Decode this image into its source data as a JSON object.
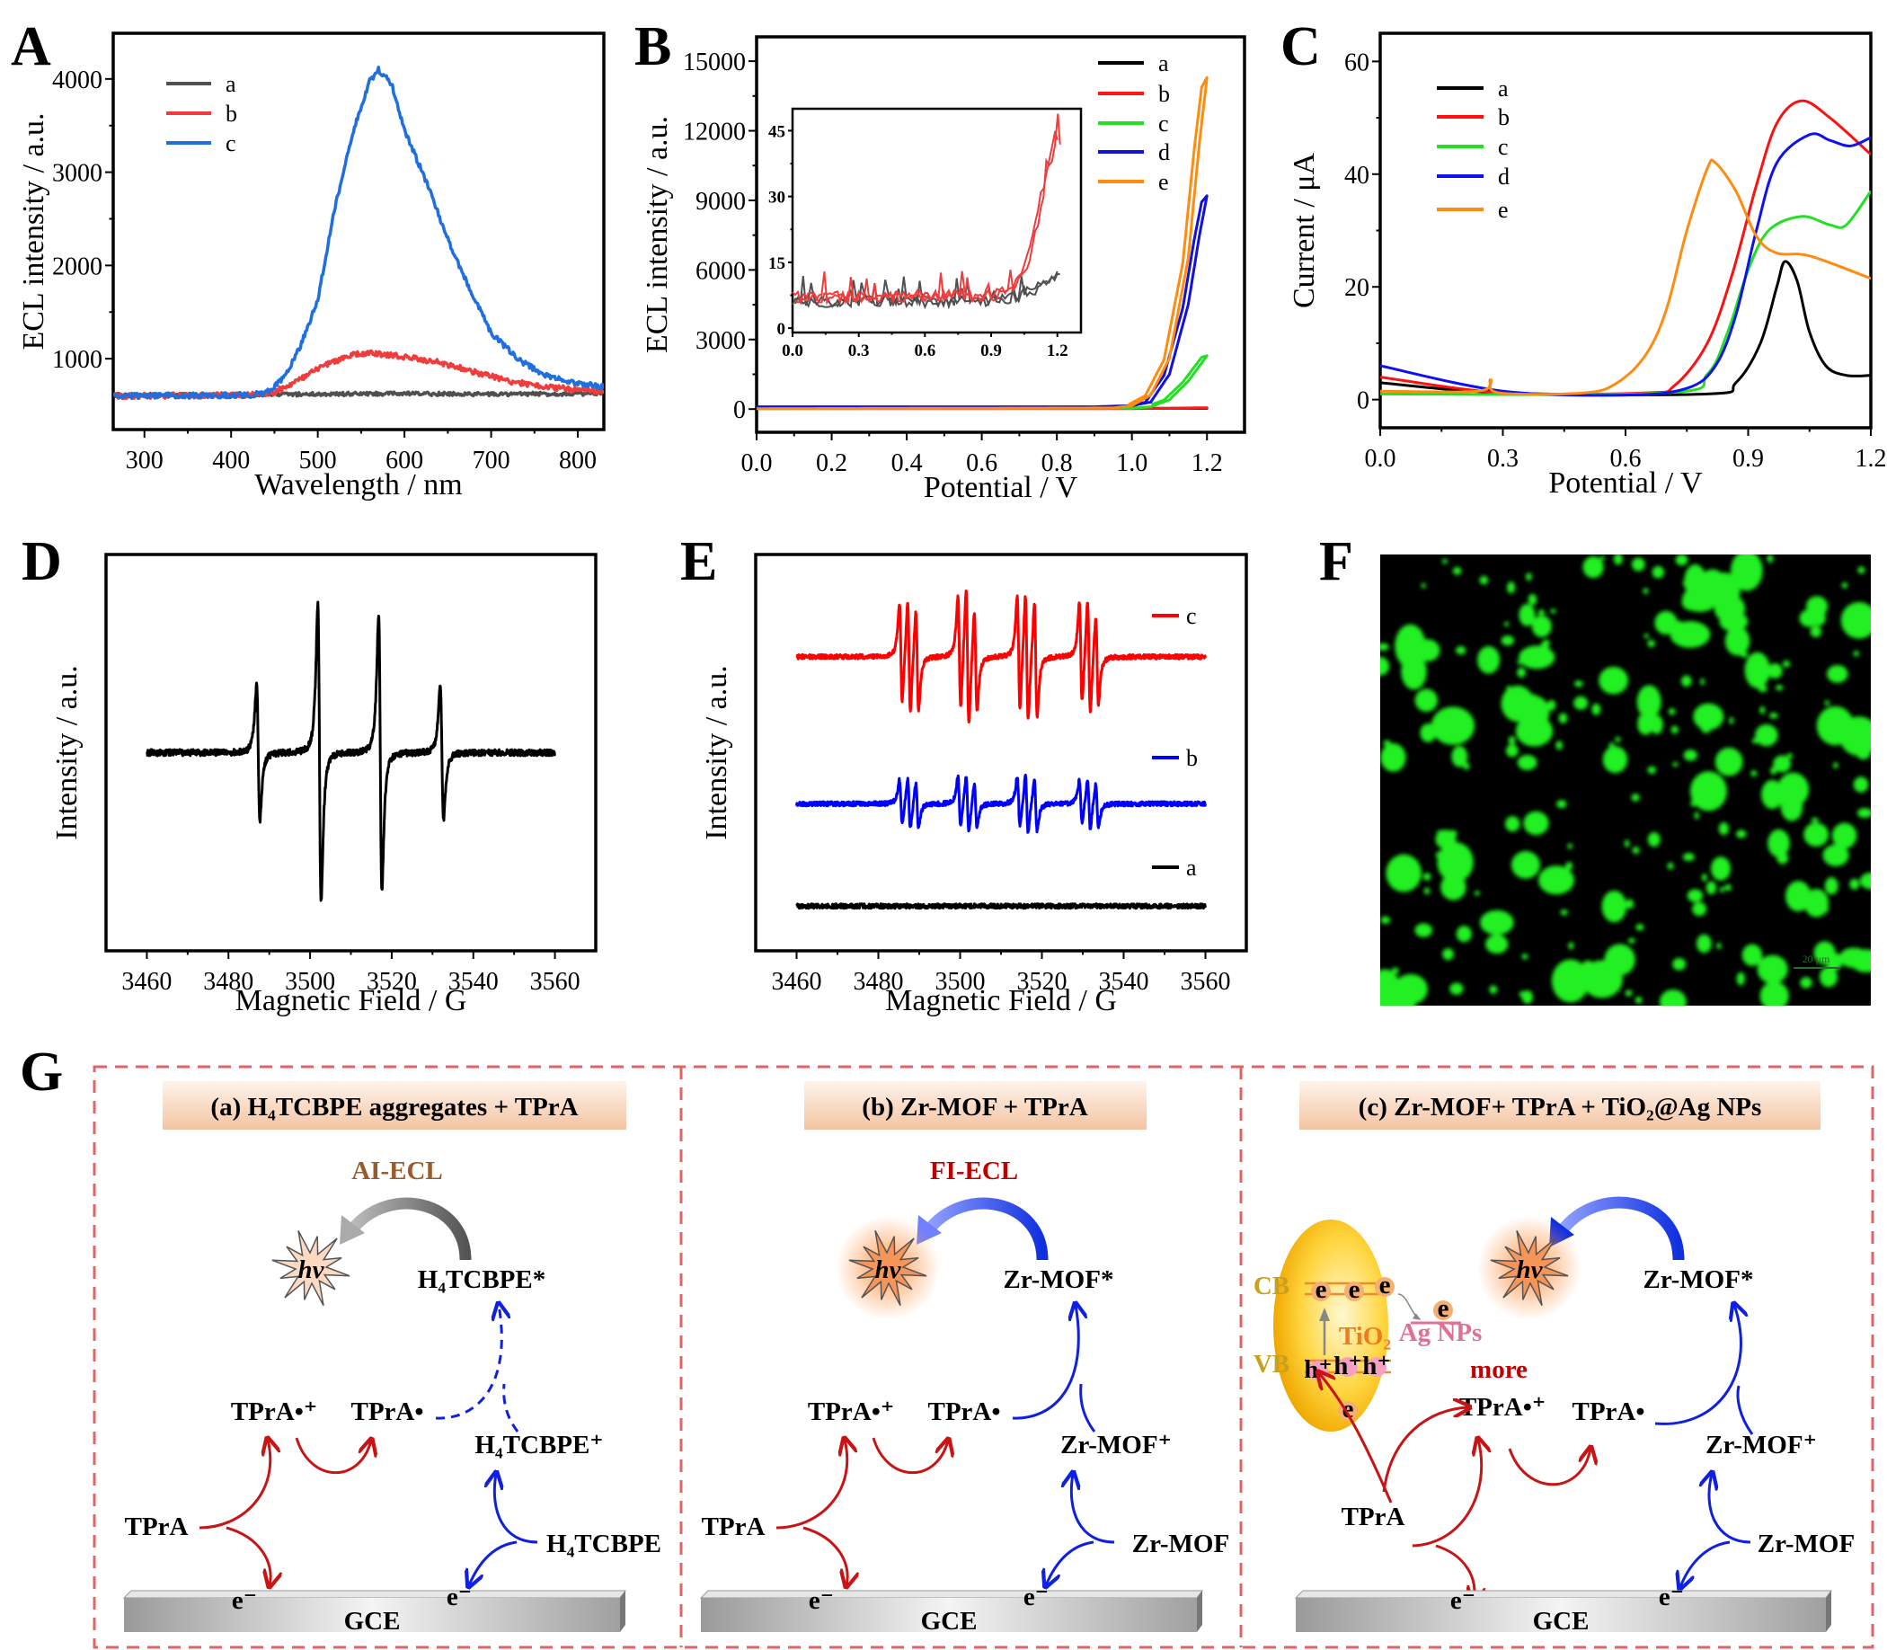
{
  "panel_labels": {
    "A": "A",
    "B": "B",
    "C": "C",
    "D": "D",
    "E": "E",
    "F": "F",
    "G": "G"
  },
  "chart_data": [
    {
      "panel": "A",
      "type": "line",
      "xlabel": "Wavelength / nm",
      "ylabel": "ECL intensity / a.u.",
      "xlim": [
        264,
        830
      ],
      "ylim": [
        240,
        4490
      ],
      "xticks": [
        "300",
        "400",
        "500",
        "600",
        "700",
        "800"
      ],
      "yticks": [
        "1000",
        "2000",
        "3000",
        "4000"
      ],
      "grid": false,
      "legend_position": "top-left",
      "series": [
        {
          "name": "a",
          "color": "#505050",
          "points": [
            [
              265,
              610
            ],
            [
              400,
              615
            ],
            [
              500,
              620
            ],
            [
              600,
              625
            ],
            [
              700,
              620
            ],
            [
              830,
              625
            ]
          ]
        },
        {
          "name": "b",
          "color": "#f03c3c",
          "points": [
            [
              265,
              600
            ],
            [
              420,
              610
            ],
            [
              450,
              640
            ],
            [
              480,
              780
            ],
            [
              510,
              940
            ],
            [
              540,
              1040
            ],
            [
              560,
              1060
            ],
            [
              600,
              1020
            ],
            [
              640,
              960
            ],
            [
              680,
              860
            ],
            [
              720,
              760
            ],
            [
              760,
              700
            ],
            [
              800,
              670
            ],
            [
              830,
              650
            ]
          ]
        },
        {
          "name": "c",
          "color": "#1f6fe0",
          "points": [
            [
              265,
              600
            ],
            [
              420,
              610
            ],
            [
              440,
              630
            ],
            [
              460,
              780
            ],
            [
              480,
              1136
            ],
            [
              500,
              1632
            ],
            [
              520,
              2632
            ],
            [
              540,
              3416
            ],
            [
              560,
              3980
            ],
            [
              570,
              4100
            ],
            [
              585,
              3950
            ],
            [
              600,
              3456
            ],
            [
              625,
              2900
            ],
            [
              650,
              2280
            ],
            [
              675,
              1750
            ],
            [
              700,
              1280
            ],
            [
              730,
              1000
            ],
            [
              760,
              830
            ],
            [
              800,
              730
            ],
            [
              830,
              700
            ]
          ]
        }
      ]
    },
    {
      "panel": "B",
      "type": "line",
      "xlabel": "Potential / V",
      "ylabel": "ECL intensity / a.u.",
      "xlim": [
        0,
        1.3
      ],
      "ylim": [
        -1000,
        16050
      ],
      "xticks": [
        "0.0",
        "0.2",
        "0.4",
        "0.6",
        "0.8",
        "1.0",
        "1.2"
      ],
      "yticks": [
        "0",
        "3000",
        "6000",
        "9000",
        "12000",
        "15000"
      ],
      "grid": false,
      "legend_position": "top-right",
      "series": [
        {
          "name": "a",
          "color": "#000000",
          "points": [
            [
              0,
              30
            ],
            [
              1.2,
              30
            ]
          ]
        },
        {
          "name": "b",
          "color": "#ff1a1a",
          "points": [
            [
              0,
              20
            ],
            [
              1.0,
              20
            ],
            [
              1.2,
              60
            ]
          ]
        },
        {
          "name": "c",
          "color": "#22e022",
          "points": [
            [
              0,
              20
            ],
            [
              1.0,
              40
            ],
            [
              1.05,
              100
            ],
            [
              1.1,
              400
            ],
            [
              1.15,
              1200
            ],
            [
              1.2,
              2300
            ]
          ]
        },
        {
          "name": "d",
          "color": "#1010e0",
          "points": [
            [
              0,
              100
            ],
            [
              0.9,
              100
            ],
            [
              1.0,
              150
            ],
            [
              1.05,
              300
            ],
            [
              1.1,
              1500
            ],
            [
              1.15,
              4500
            ],
            [
              1.18,
              7500
            ],
            [
              1.2,
              9200
            ]
          ]
        },
        {
          "name": "e",
          "color": "#ff8c10",
          "points": [
            [
              0,
              20
            ],
            [
              0.95,
              50
            ],
            [
              1.0,
              150
            ],
            [
              1.05,
              600
            ],
            [
              1.1,
              2200
            ],
            [
              1.15,
              6500
            ],
            [
              1.18,
              11500
            ],
            [
              1.2,
              14300
            ]
          ]
        }
      ],
      "inset": {
        "type": "line",
        "xlim": [
          0,
          1.307
        ],
        "ylim": [
          -1,
          50
        ],
        "xticks": [
          "0.0",
          "0.3",
          "0.6",
          "0.9",
          "1.2"
        ],
        "yticks": [
          "0",
          "15",
          "30",
          "45"
        ],
        "series": [
          {
            "color": "#505050",
            "points": [
              [
                0,
                6
              ],
              [
                0.9,
                6
              ],
              [
                1.0,
                7
              ],
              [
                1.1,
                9
              ],
              [
                1.2,
                12
              ]
            ]
          },
          {
            "color": "#f03c3c",
            "points": [
              [
                0,
                7
              ],
              [
                0.9,
                7.5
              ],
              [
                1.0,
                9
              ],
              [
                1.05,
                14
              ],
              [
                1.1,
                24
              ],
              [
                1.15,
                36
              ],
              [
                1.19,
                45
              ],
              [
                1.2,
                42
              ]
            ]
          }
        ]
      }
    },
    {
      "panel": "C",
      "type": "line",
      "xlabel": "Potential / V",
      "ylabel": "Current / μA",
      "xlim": [
        0,
        1.2
      ],
      "ylim": [
        -5,
        65
      ],
      "xticks": [
        "0.0",
        "0.3",
        "0.6",
        "0.9",
        "1.2"
      ],
      "yticks": [
        "0",
        "20",
        "40",
        "60"
      ],
      "grid": false,
      "legend_position": "top-left",
      "series": [
        {
          "name": "a",
          "color": "#000000",
          "points": [
            [
              0,
              3
            ],
            [
              0.3,
              1.2
            ],
            [
              0.8,
              1
            ],
            [
              0.87,
              3
            ],
            [
              0.93,
              10
            ],
            [
              0.97,
              20
            ],
            [
              0.99,
              24.5
            ],
            [
              1.02,
              21
            ],
            [
              1.05,
              12
            ],
            [
              1.09,
              6
            ],
            [
              1.14,
              4.3
            ],
            [
              1.2,
              4.3
            ]
          ]
        },
        {
          "name": "b",
          "color": "#ff1010",
          "points": [
            [
              0,
              4
            ],
            [
              0.3,
              1.2
            ],
            [
              0.65,
              1.2
            ],
            [
              0.72,
              2.5
            ],
            [
              0.8,
              10
            ],
            [
              0.86,
              22
            ],
            [
              0.92,
              38
            ],
            [
              0.97,
              49
            ],
            [
              1.03,
              53
            ],
            [
              1.1,
              50
            ],
            [
              1.2,
              43.5
            ]
          ]
        },
        {
          "name": "c",
          "color": "#22e022",
          "points": [
            [
              0,
              1
            ],
            [
              0.7,
              1.2
            ],
            [
              0.8,
              4.5
            ],
            [
              0.85,
              12
            ],
            [
              0.9,
              23
            ],
            [
              0.95,
              30
            ],
            [
              1.03,
              32.5
            ],
            [
              1.1,
              31
            ],
            [
              1.14,
              31
            ],
            [
              1.2,
              37
            ]
          ]
        },
        {
          "name": "d",
          "color": "#1010f0",
          "points": [
            [
              0,
              6
            ],
            [
              0.3,
              1.5
            ],
            [
              0.6,
              0.8
            ],
            [
              0.75,
              2
            ],
            [
              0.82,
              6
            ],
            [
              0.87,
              15
            ],
            [
              0.92,
              30
            ],
            [
              0.97,
              42
            ],
            [
              1.05,
              47
            ],
            [
              1.1,
              46
            ],
            [
              1.15,
              45
            ],
            [
              1.2,
              46.5
            ]
          ]
        },
        {
          "name": "e",
          "color": "#ff8c10",
          "points": [
            [
              0,
              1.5
            ],
            [
              0.24,
              1.5
            ],
            [
              0.27,
              3.5
            ],
            [
              0.29,
              1.2
            ],
            [
              0.5,
              1.2
            ],
            [
              0.58,
              3
            ],
            [
              0.65,
              8
            ],
            [
              0.7,
              16
            ],
            [
              0.75,
              30
            ],
            [
              0.8,
              41
            ],
            [
              0.82,
              42
            ],
            [
              0.87,
              37
            ],
            [
              0.92,
              29
            ],
            [
              0.97,
              26
            ],
            [
              1.05,
              25.5
            ],
            [
              1.2,
              21.5
            ]
          ]
        }
      ]
    },
    {
      "panel": "D",
      "type": "line",
      "xlabel": "Magnetic Field / G",
      "ylabel": "Intensity / a.u.",
      "xlim": [
        3450,
        3570
      ],
      "ylim": [
        -1.4,
        1.4
      ],
      "xticks": [
        "3460",
        "3480",
        "3500",
        "3520",
        "3540",
        "3560"
      ],
      "yticks": [],
      "grid": false,
      "series": [
        {
          "color": "#000000",
          "offset": 0,
          "range": [
            3460,
            3560
          ],
          "linewidth_G": 0.7,
          "lines": [
            {
              "center": 3487.3,
              "amplitude": 0.48
            },
            {
              "center": 3502.3,
              "amplitude": 1.05
            },
            {
              "center": 3517.2,
              "amplitude": 0.98
            },
            {
              "center": 3532.3,
              "amplitude": 0.48
            }
          ]
        }
      ]
    },
    {
      "panel": "E",
      "type": "line",
      "xlabel": "Magnetic Field / G",
      "ylabel": "Intensity / a.u.",
      "xlim": [
        3450,
        3570
      ],
      "ylim": [
        -2.3,
        3.9
      ],
      "xticks": [
        "3460",
        "3480",
        "3500",
        "3520",
        "3540",
        "3560"
      ],
      "yticks": [],
      "grid": false,
      "legend_position": "right",
      "series": [
        {
          "name": "c",
          "color": "#ff0000",
          "offset": 2.3,
          "range": [
            3460,
            3560
          ],
          "linewidth_G": 0.6,
          "lines": [
            {
              "center": 3485.5,
              "amplitude": 0.8
            },
            {
              "center": 3487.5,
              "amplitude": 0.9
            },
            {
              "center": 3489.5,
              "amplitude": 0.8
            },
            {
              "center": 3499.8,
              "amplitude": 0.9
            },
            {
              "center": 3501.8,
              "amplitude": 1.1
            },
            {
              "center": 3503.8,
              "amplitude": 0.8
            },
            {
              "center": 3514.3,
              "amplitude": 0.9
            },
            {
              "center": 3516.3,
              "amplitude": 1.0
            },
            {
              "center": 3518.5,
              "amplitude": 0.9
            },
            {
              "center": 3529.5,
              "amplitude": 0.8
            },
            {
              "center": 3531.5,
              "amplitude": 0.9
            },
            {
              "center": 3533.5,
              "amplitude": 0.7
            }
          ]
        },
        {
          "name": "b",
          "color": "#0000ff",
          "offset": 0,
          "range": [
            3460,
            3560
          ],
          "linewidth_G": 0.6,
          "lines": [
            {
              "center": 3485.5,
              "amplitude": 0.35
            },
            {
              "center": 3487.5,
              "amplitude": 0.4
            },
            {
              "center": 3489.5,
              "amplitude": 0.35
            },
            {
              "center": 3499.8,
              "amplitude": 0.4
            },
            {
              "center": 3501.8,
              "amplitude": 0.45
            },
            {
              "center": 3503.8,
              "amplitude": 0.35
            },
            {
              "center": 3514.3,
              "amplitude": 0.4
            },
            {
              "center": 3516.3,
              "amplitude": 0.45
            },
            {
              "center": 3518.5,
              "amplitude": 0.4
            },
            {
              "center": 3529.5,
              "amplitude": 0.35
            },
            {
              "center": 3531.5,
              "amplitude": 0.4
            },
            {
              "center": 3533.5,
              "amplitude": 0.35
            }
          ]
        },
        {
          "name": "a",
          "color": "#000000",
          "offset": -1.6,
          "range": [
            3460,
            3560
          ],
          "linewidth_G": 0.6,
          "lines": []
        }
      ]
    }
  ],
  "micrograph": {
    "panel": "F",
    "scale_bar": "20 μm",
    "particle_color": "#22f022",
    "background": "#000000"
  },
  "scheme": {
    "panel": "G",
    "border_color": "#e06464",
    "panels": [
      {
        "title": "(a) H₄TCBPE aggregates + TPrA",
        "mode": "AI-ECL",
        "mode_color": "#9a5a2a",
        "hv": "hν",
        "excited": "H₄TCBPE*",
        "tpra_cation": "TPrA•⁺",
        "tpra_radical": "TPrA•",
        "oxidized": "H₄TCBPE⁺",
        "tpra": "TPrA",
        "luminophore": "H₄TCBPE",
        "electron": "e⁻",
        "electrode": "GCE"
      },
      {
        "title": "(b) Zr-MOF + TPrA",
        "mode": "FI-ECL",
        "mode_color": "#c00000",
        "hv": "hν",
        "excited": "Zr-MOF*",
        "tpra_cation": "TPrA•⁺",
        "tpra_radical": "TPrA•",
        "oxidized": "Zr-MOF⁺",
        "tpra": "TPrA",
        "luminophore": "Zr-MOF",
        "electron": "e⁻",
        "electrode": "GCE"
      },
      {
        "title": "(c) Zr-MOF+ TPrA + TiO₂@Ag NPs",
        "hv": "hν",
        "excited": "Zr-MOF*",
        "tpra_cation": "TPrA•⁺",
        "tpra_radical": "TPrA•",
        "oxidized": "Zr-MOF⁺",
        "tpra": "TPrA",
        "luminophore": "Zr-MOF",
        "electron": "e⁻",
        "electrode": "GCE",
        "more": "more",
        "more_color": "#c00000",
        "cb": "CB",
        "vb": "VB",
        "semiconductor": "TiO₂",
        "ag": "Ag NPs",
        "e": "e",
        "h": "h⁺"
      }
    ]
  }
}
